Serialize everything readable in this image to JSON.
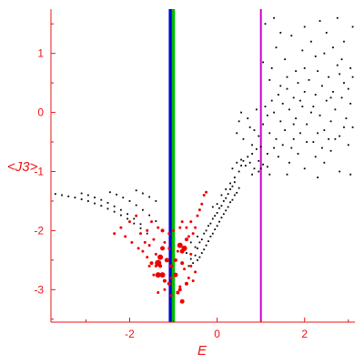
{
  "chart_data": {
    "type": "scatter",
    "title": "",
    "xlabel": "E",
    "ylabel": "<J3>",
    "xlim": [
      -3.8,
      3.15
    ],
    "ylim": [
      -3.55,
      1.75
    ],
    "grid": false,
    "legend": "none",
    "x_ticks": [
      -2,
      0,
      2
    ],
    "y_ticks": [
      1,
      0,
      -1,
      -2,
      -3
    ],
    "vertical_lines": [
      {
        "x": -1.07,
        "color": "#0000dd"
      },
      {
        "x": -1.0,
        "color": "#00bb00"
      },
      {
        "x": 1.0,
        "color": "#cc00cc"
      }
    ],
    "colors": {
      "axis": "#ee1111",
      "black_series": "#000000",
      "red_series": "#ee0000"
    },
    "series": [
      {
        "color": "#000000",
        "values": [
          [
            -3.7,
            -1.38
          ],
          [
            -3.55,
            -1.4
          ],
          [
            -3.4,
            -1.42
          ],
          [
            -3.25,
            -1.44
          ],
          [
            -3.1,
            -1.47
          ],
          [
            -2.95,
            -1.5
          ],
          [
            -2.8,
            -1.54
          ],
          [
            -2.65,
            -1.58
          ],
          [
            -2.5,
            -1.63
          ],
          [
            -2.35,
            -1.68
          ],
          [
            -2.2,
            -1.74
          ],
          [
            -2.05,
            -1.8
          ],
          [
            -1.9,
            -1.88
          ],
          [
            -1.75,
            -1.96
          ],
          [
            -1.6,
            -2.05
          ],
          [
            -3.1,
            -1.37
          ],
          [
            -2.95,
            -1.4
          ],
          [
            -2.8,
            -1.44
          ],
          [
            -2.65,
            -1.48
          ],
          [
            -2.5,
            -1.53
          ],
          [
            -2.35,
            -1.59
          ],
          [
            -2.2,
            -1.65
          ],
          [
            -2.05,
            -1.72
          ],
          [
            -1.9,
            -1.8
          ],
          [
            -1.75,
            -1.89
          ],
          [
            -1.6,
            -1.99
          ],
          [
            -2.45,
            -1.35
          ],
          [
            -2.3,
            -1.39
          ],
          [
            -2.15,
            -1.44
          ],
          [
            -2.0,
            -1.5
          ],
          [
            -1.85,
            -1.57
          ],
          [
            -1.7,
            -1.65
          ],
          [
            -1.55,
            -1.74
          ],
          [
            -1.4,
            -1.84
          ],
          [
            -1.85,
            -1.32
          ],
          [
            -1.7,
            -1.37
          ],
          [
            -1.55,
            -1.43
          ],
          [
            -1.4,
            -1.5
          ],
          [
            -0.55,
            -2.55
          ],
          [
            -0.5,
            -2.42
          ],
          [
            -0.45,
            -2.3
          ],
          [
            -0.4,
            -2.2
          ],
          [
            -0.35,
            -2.15
          ],
          [
            -0.3,
            -2.05
          ],
          [
            -0.25,
            -2.0
          ],
          [
            -0.2,
            -1.92
          ],
          [
            -0.15,
            -1.88
          ],
          [
            -0.1,
            -1.8
          ],
          [
            -0.05,
            -1.75
          ],
          [
            0.0,
            -1.7
          ],
          [
            0.05,
            -1.62
          ],
          [
            0.1,
            -1.58
          ],
          [
            0.15,
            -1.5
          ],
          [
            0.2,
            -1.45
          ],
          [
            0.25,
            -1.38
          ],
          [
            0.3,
            -1.3
          ],
          [
            0.35,
            -1.25
          ],
          [
            0.4,
            -1.18
          ],
          [
            -0.45,
            -2.5
          ],
          [
            -0.35,
            -2.38
          ],
          [
            -0.25,
            -2.25
          ],
          [
            -0.15,
            -2.1
          ],
          [
            -0.05,
            -1.98
          ],
          [
            0.05,
            -1.85
          ],
          [
            0.15,
            -1.72
          ],
          [
            0.25,
            -1.6
          ],
          [
            0.35,
            -1.48
          ],
          [
            0.45,
            -1.36
          ],
          [
            -0.3,
            -2.32
          ],
          [
            -0.2,
            -2.18
          ],
          [
            -0.1,
            -2.05
          ],
          [
            0.0,
            -1.92
          ],
          [
            0.1,
            -1.78
          ],
          [
            0.2,
            -1.66
          ],
          [
            0.3,
            -1.52
          ],
          [
            0.4,
            -1.4
          ],
          [
            0.5,
            -1.28
          ],
          [
            -0.65,
            -2.6
          ],
          [
            -0.6,
            -2.48
          ],
          [
            -0.7,
            -2.38
          ],
          [
            -0.5,
            -2.28
          ],
          [
            -0.4,
            -2.45
          ],
          [
            -0.6,
            -2.2
          ],
          [
            -0.45,
            -2.1
          ],
          [
            -0.1,
            -1.6
          ],
          [
            0.0,
            -1.55
          ],
          [
            0.1,
            -1.4
          ],
          [
            0.2,
            -1.3
          ],
          [
            0.3,
            -1.2
          ],
          [
            0.4,
            -1.1
          ],
          [
            0.5,
            -1.0
          ],
          [
            0.55,
            -0.9
          ],
          [
            0.6,
            -0.82
          ],
          [
            0.7,
            -0.75
          ],
          [
            0.8,
            -0.7
          ],
          [
            0.9,
            -0.62
          ],
          [
            1.0,
            -0.58
          ],
          [
            0.35,
            -0.95
          ],
          [
            0.45,
            -0.85
          ],
          [
            0.55,
            -0.8
          ],
          [
            0.65,
            -0.9
          ],
          [
            0.75,
            -0.85
          ],
          [
            0.85,
            -0.95
          ],
          [
            0.95,
            -0.82
          ],
          [
            1.05,
            -0.88
          ],
          [
            1.15,
            -0.92
          ],
          [
            0.45,
            -0.35
          ],
          [
            0.5,
            -0.15
          ],
          [
            0.55,
            0.0
          ],
          [
            0.6,
            -0.45
          ],
          [
            0.7,
            -0.1
          ],
          [
            0.75,
            -0.25
          ],
          [
            0.8,
            -0.55
          ],
          [
            0.85,
            -0.3
          ],
          [
            0.9,
            0.05
          ],
          [
            0.95,
            -0.4
          ],
          [
            1.05,
            -0.2
          ],
          [
            1.1,
            0.1
          ],
          [
            1.15,
            -0.05
          ],
          [
            1.2,
            -0.35
          ],
          [
            1.25,
            0.2
          ],
          [
            1.3,
            0.0
          ],
          [
            1.35,
            -0.45
          ],
          [
            1.4,
            0.3
          ],
          [
            1.45,
            -0.15
          ],
          [
            1.5,
            0.15
          ],
          [
            1.55,
            -0.3
          ],
          [
            1.6,
            0.4
          ],
          [
            1.65,
            0.05
          ],
          [
            1.7,
            -0.6
          ],
          [
            1.75,
            0.25
          ],
          [
            1.8,
            -0.1
          ],
          [
            1.85,
            0.5
          ],
          [
            1.9,
            -0.35
          ],
          [
            1.95,
            0.1
          ],
          [
            2.0,
            0.35
          ],
          [
            2.05,
            -0.2
          ],
          [
            2.1,
            0.55
          ],
          [
            2.15,
            0.0
          ],
          [
            2.2,
            -0.5
          ],
          [
            2.25,
            0.3
          ],
          [
            2.3,
            0.7
          ],
          [
            2.35,
            -0.05
          ],
          [
            2.4,
            0.45
          ],
          [
            2.45,
            -0.3
          ],
          [
            2.5,
            0.2
          ],
          [
            2.55,
            0.6
          ],
          [
            2.6,
            -0.15
          ],
          [
            2.65,
            0.35
          ],
          [
            2.7,
            0.05
          ],
          [
            2.75,
            0.8
          ],
          [
            2.8,
            -0.4
          ],
          [
            2.85,
            0.25
          ],
          [
            2.9,
            0.5
          ],
          [
            2.95,
            -0.1
          ],
          [
            3.0,
            0.4
          ],
          [
            3.05,
            0.15
          ],
          [
            3.1,
            -0.25
          ],
          [
            2.25,
            0.95
          ],
          [
            2.45,
            1.0
          ],
          [
            2.65,
            1.1
          ],
          [
            2.85,
            0.9
          ],
          [
            3.05,
            0.75
          ],
          [
            1.7,
            1.3
          ],
          [
            1.95,
            1.05
          ],
          [
            2.15,
            1.2
          ],
          [
            2.5,
            1.35
          ],
          [
            2.9,
            1.2
          ],
          [
            3.1,
            1.45
          ],
          [
            1.35,
            1.1
          ],
          [
            1.55,
            0.9
          ],
          [
            1.25,
            0.75
          ],
          [
            1.45,
            1.35
          ],
          [
            1.1,
            1.5
          ],
          [
            1.3,
            1.6
          ],
          [
            2.0,
            1.45
          ],
          [
            2.75,
            1.6
          ],
          [
            1.8,
            0.7
          ],
          [
            2.35,
            1.55
          ],
          [
            1.05,
            0.85
          ],
          [
            1.2,
            0.55
          ],
          [
            1.65,
            -0.85
          ],
          [
            2.0,
            -0.95
          ],
          [
            2.45,
            -0.85
          ],
          [
            2.8,
            -1.0
          ],
          [
            3.05,
            -1.05
          ],
          [
            1.4,
            -0.75
          ],
          [
            1.85,
            -0.7
          ],
          [
            2.25,
            -0.75
          ],
          [
            2.6,
            -0.65
          ],
          [
            0.95,
            -1.0
          ],
          [
            1.2,
            -1.05
          ],
          [
            1.6,
            -1.05
          ],
          [
            1.0,
            -0.95
          ],
          [
            0.8,
            -1.05
          ],
          [
            2.3,
            -1.1
          ],
          [
            1.5,
            -0.55
          ],
          [
            1.75,
            -0.45
          ],
          [
            2.05,
            -0.5
          ],
          [
            2.4,
            -0.6
          ],
          [
            2.7,
            -0.45
          ],
          [
            3.0,
            -0.55
          ],
          [
            1.3,
            -0.6
          ],
          [
            1.15,
            -0.7
          ],
          [
            2.2,
            0.1
          ],
          [
            2.6,
            0.25
          ],
          [
            1.9,
            0.2
          ],
          [
            2.3,
            -0.35
          ],
          [
            1.6,
            0.6
          ],
          [
            2.8,
            0.65
          ],
          [
            3.1,
            0.6
          ],
          [
            1.45,
            0.45
          ],
          [
            2.55,
            -0.45
          ],
          [
            2.0,
            0.75
          ],
          [
            2.9,
            -0.25
          ],
          [
            1.75,
            -0.2
          ]
        ]
      },
      {
        "color": "#ee0000",
        "values": [
          [
            -1.55,
            -2.25,
            3
          ],
          [
            -1.45,
            -2.15,
            3
          ],
          [
            -1.4,
            -2.4,
            3
          ],
          [
            -1.35,
            -1.95,
            3
          ],
          [
            -1.5,
            -2.55,
            4
          ],
          [
            -1.3,
            -2.6,
            4
          ],
          [
            -1.25,
            -2.3,
            5
          ],
          [
            -1.3,
            -2.45,
            6
          ],
          [
            -1.35,
            -2.75,
            6
          ],
          [
            -1.25,
            -2.0,
            4
          ],
          [
            -1.2,
            -2.85,
            4
          ],
          [
            -1.15,
            -2.5,
            5
          ],
          [
            -1.2,
            -2.2,
            3
          ],
          [
            -1.1,
            -2.9,
            4
          ],
          [
            -1.1,
            -2.3,
            3
          ],
          [
            -1.05,
            -2.6,
            4
          ],
          [
            -1.0,
            -2.0,
            3
          ],
          [
            -0.95,
            -2.75,
            5
          ],
          [
            -0.95,
            -2.5,
            4
          ],
          [
            -0.9,
            -3.05,
            4
          ],
          [
            -0.9,
            -2.35,
            3
          ],
          [
            -0.85,
            -2.25,
            6
          ],
          [
            -0.8,
            -2.35,
            5
          ],
          [
            -0.8,
            -2.55,
            4
          ],
          [
            -0.75,
            -2.3,
            6
          ],
          [
            -0.7,
            -2.15,
            4
          ],
          [
            -0.75,
            -2.65,
            3
          ],
          [
            -0.7,
            -2.9,
            4
          ],
          [
            -0.85,
            -3.0,
            4
          ],
          [
            -0.8,
            -3.2,
            5
          ],
          [
            -0.65,
            -2.8,
            3
          ],
          [
            -0.65,
            -2.1,
            3
          ],
          [
            -0.6,
            -2.4,
            3
          ],
          [
            -0.55,
            -2.05,
            3
          ],
          [
            -0.6,
            -1.85,
            3
          ],
          [
            -0.5,
            -1.95,
            3
          ],
          [
            -0.45,
            -1.75,
            3
          ],
          [
            -0.4,
            -1.65,
            3
          ],
          [
            -0.35,
            -1.55,
            3
          ],
          [
            -0.3,
            -1.4,
            3
          ],
          [
            -0.25,
            -1.35,
            3
          ],
          [
            -1.75,
            -2.05,
            3
          ],
          [
            -1.65,
            -2.2,
            3
          ],
          [
            -1.85,
            -1.75,
            3
          ],
          [
            -2.0,
            -1.85,
            3
          ],
          [
            -2.2,
            -1.95,
            3
          ],
          [
            -2.35,
            -2.05,
            3
          ],
          [
            -1.95,
            -2.2,
            3
          ],
          [
            -2.1,
            -2.1,
            3
          ],
          [
            -1.5,
            -1.85,
            3
          ],
          [
            -1.6,
            -2.0,
            3
          ],
          [
            -1.35,
            -2.55,
            7
          ],
          [
            -1.25,
            -2.75,
            6
          ],
          [
            -1.4,
            -2.6,
            3
          ],
          [
            -1.35,
            -3.05,
            3
          ],
          [
            -1.05,
            -2.8,
            3
          ],
          [
            -0.85,
            -2.95,
            3
          ],
          [
            -0.85,
            -1.95,
            3
          ],
          [
            -0.8,
            -1.85,
            3
          ],
          [
            -1.05,
            -3.1,
            3
          ],
          [
            -1.2,
            -3.0,
            3
          ],
          [
            -1.1,
            -2.05,
            3
          ],
          [
            -0.7,
            -1.95,
            3
          ],
          [
            -0.6,
            -2.6,
            3
          ],
          [
            -0.5,
            -2.7,
            3
          ],
          [
            -0.55,
            -2.85,
            3
          ],
          [
            -1.6,
            -2.45,
            3
          ],
          [
            -1.7,
            -2.35,
            3
          ],
          [
            -1.8,
            -2.3,
            3
          ],
          [
            -1.55,
            -2.6,
            3
          ],
          [
            -1.45,
            -2.75,
            3
          ]
        ]
      }
    ]
  }
}
